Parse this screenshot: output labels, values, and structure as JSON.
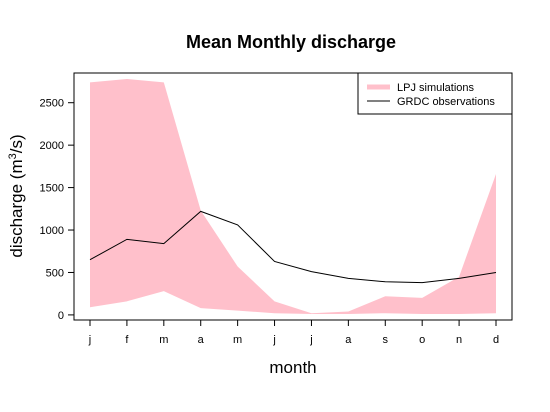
{
  "chart_data": {
    "type": "area",
    "title": "Mean Monthly discharge",
    "xlabel": "month",
    "ylabel": "discharge (m",
    "ylabel_sup": "3",
    "ylabel_end": "/s)",
    "categories": [
      "j",
      "f",
      "m",
      "a",
      "m",
      "j",
      "j",
      "a",
      "s",
      "o",
      "n",
      "d"
    ],
    "ylim": [
      -60,
      2850
    ],
    "yticks": [
      0,
      500,
      1000,
      1500,
      2000,
      2500
    ],
    "legend_position": "top-right",
    "series": [
      {
        "name": "LPJ simulations",
        "kind": "band",
        "color": "#ffc0cb",
        "upper": [
          2740,
          2780,
          2740,
          1230,
          570,
          160,
          20,
          40,
          220,
          200,
          450,
          1660
        ],
        "lower": [
          90,
          160,
          280,
          80,
          50,
          20,
          10,
          10,
          20,
          10,
          10,
          20
        ]
      },
      {
        "name": "GRDC observations",
        "kind": "line",
        "color": "#000000",
        "values": [
          650,
          890,
          840,
          1220,
          1060,
          630,
          510,
          430,
          390,
          380,
          430,
          500
        ]
      }
    ]
  }
}
